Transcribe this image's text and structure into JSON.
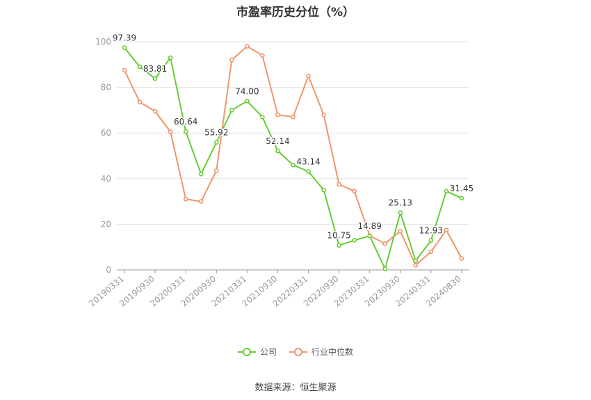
{
  "chart_data": {
    "type": "line",
    "title": "市盈率历史分位（%）",
    "x": [
      "20190331",
      "20190630",
      "20190930",
      "20191231",
      "20200331",
      "20200630",
      "20200930",
      "20201231",
      "20210331",
      "20210630",
      "20210930",
      "20211231",
      "20220331",
      "20220630",
      "20220930",
      "20221231",
      "20230331",
      "20230630",
      "20230930",
      "20231231",
      "20240331",
      "20240630",
      "20240830"
    ],
    "x_tick_labels": [
      "20190331",
      "20190930",
      "20200331",
      "20200930",
      "20210331",
      "20210930",
      "20220331",
      "20220930",
      "20230331",
      "20230930",
      "20240331",
      "20240830"
    ],
    "ylim": [
      0,
      100
    ],
    "y_ticks": [
      0,
      20,
      40,
      60,
      80,
      100
    ],
    "grid": true,
    "legend_position": "bottom",
    "series": [
      {
        "name": "公司",
        "color": "#66cc33",
        "values": [
          97.39,
          89,
          83.81,
          93,
          60.64,
          42,
          55.92,
          70,
          74.0,
          67,
          52.14,
          46,
          43.14,
          35,
          10.75,
          13,
          14.89,
          0.5,
          25.13,
          4,
          12.93,
          34.5,
          31.45
        ],
        "data_labels": [
          {
            "index": 0,
            "text": "97.39"
          },
          {
            "index": 2,
            "text": "83.81"
          },
          {
            "index": 4,
            "text": "60.64"
          },
          {
            "index": 6,
            "text": "55.92"
          },
          {
            "index": 8,
            "text": "74.00"
          },
          {
            "index": 10,
            "text": "52.14"
          },
          {
            "index": 12,
            "text": "43.14"
          },
          {
            "index": 14,
            "text": "10.75"
          },
          {
            "index": 16,
            "text": "14.89"
          },
          {
            "index": 18,
            "text": "25.13"
          },
          {
            "index": 20,
            "text": "12.93"
          },
          {
            "index": 22,
            "text": "31.45"
          }
        ]
      },
      {
        "name": "行业中位数",
        "color": "#f0956a",
        "values": [
          87.5,
          73.5,
          69.5,
          60.5,
          31,
          30,
          43.5,
          92,
          98,
          94,
          68,
          67,
          85,
          68,
          37.5,
          34.5,
          15,
          11.5,
          17,
          2,
          8,
          17.5,
          5
        ]
      }
    ]
  },
  "footer": {
    "source": "数据来源：恒生聚源"
  }
}
